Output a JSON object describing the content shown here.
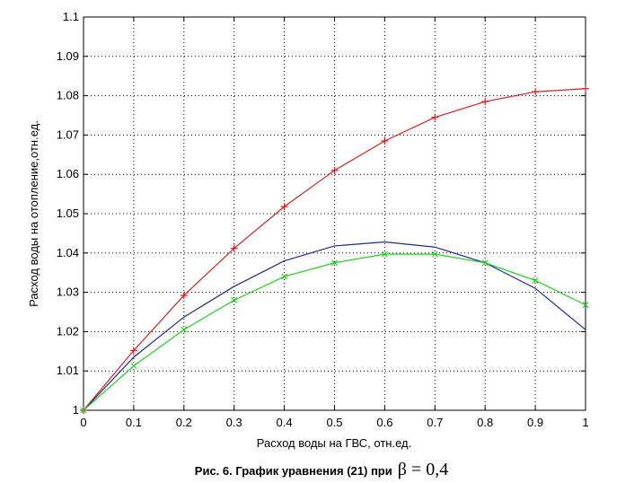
{
  "chart_data": {
    "type": "line",
    "title": "",
    "xlabel": "Расход воды на ГВС, отн.ед.",
    "ylabel": "Расход воды на отопление,отн.ед.",
    "xlim": [
      0,
      1
    ],
    "ylim": [
      1,
      1.1
    ],
    "x_ticks": [
      "0",
      "0.1",
      "0.2",
      "0.3",
      "0.4",
      "0.5",
      "0.6",
      "0.7",
      "0.8",
      "0.9",
      "1"
    ],
    "y_ticks": [
      "1",
      "1.01",
      "1.02",
      "1.03",
      "1.04",
      "1.05",
      "1.06",
      "1.07",
      "1.08",
      "1.09",
      "1.1"
    ],
    "grid": true,
    "x": [
      0,
      0.1,
      0.2,
      0.3,
      0.4,
      0.5,
      0.6,
      0.7,
      0.8,
      0.9,
      1.0
    ],
    "series": [
      {
        "color": "#d42020",
        "marker": "+",
        "values": [
          1.0,
          1.0152,
          1.0292,
          1.0412,
          1.0518,
          1.061,
          1.0685,
          1.0745,
          1.0785,
          1.081,
          1.0818
        ]
      },
      {
        "color": "#1f2a8c",
        "marker": "none",
        "values": [
          1.0,
          1.0135,
          1.0237,
          1.0315,
          1.038,
          1.0418,
          1.0428,
          1.0415,
          1.0375,
          1.031,
          1.0205
        ]
      },
      {
        "color": "#20d020",
        "marker": "x",
        "values": [
          1.0,
          1.0113,
          1.0205,
          1.028,
          1.034,
          1.0375,
          1.0397,
          1.0397,
          1.0375,
          1.033,
          1.0268
        ]
      }
    ]
  },
  "caption": {
    "text": "Рис. 6. График уравнения (21) при",
    "formula": "β = 0,4"
  }
}
